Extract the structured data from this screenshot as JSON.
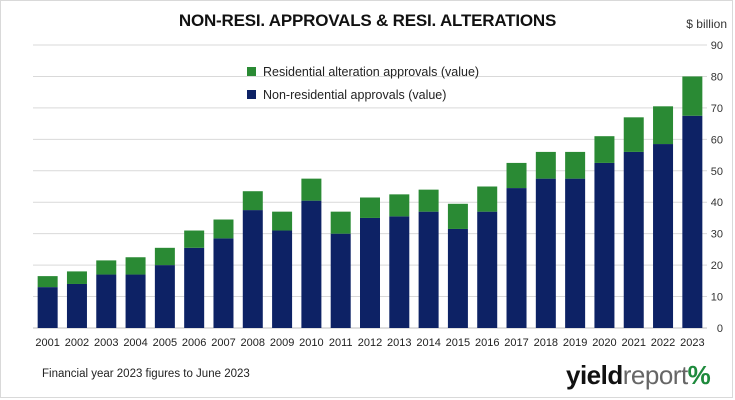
{
  "chart_data": {
    "type": "bar",
    "stacked": true,
    "title": "NON-RESI. APPROVALS & RESI. ALTERATIONS",
    "unit_label": "$ billion",
    "categories": [
      "2001",
      "2002",
      "2003",
      "2004",
      "2005",
      "2006",
      "2007",
      "2008",
      "2009",
      "2010",
      "2011",
      "2012",
      "2013",
      "2014",
      "2015",
      "2016",
      "2017",
      "2018",
      "2019",
      "2020",
      "2021",
      "2022",
      "2023"
    ],
    "series": [
      {
        "name": "Non-residential approvals (value)",
        "color": "#0d2265",
        "values": [
          13,
          14,
          17,
          17,
          20,
          25.5,
          28.5,
          37.5,
          31,
          40.5,
          30,
          35,
          35.5,
          37,
          31.5,
          37,
          44.5,
          47.5,
          47.5,
          52.5,
          56,
          58.5,
          67.5
        ]
      },
      {
        "name": "Residential alteration approvals (value)",
        "color": "#2a8a34",
        "values": [
          3.5,
          4,
          4.5,
          5.5,
          5.5,
          5.5,
          6,
          6,
          6,
          7,
          7,
          6.5,
          7,
          7,
          8,
          8,
          8,
          8.5,
          8.5,
          8.5,
          11,
          12,
          12.5
        ]
      }
    ],
    "ylim": [
      0,
      90
    ],
    "yticks": [
      0,
      10,
      20,
      30,
      40,
      50,
      60,
      70,
      80,
      90
    ],
    "grid": true,
    "legend_placement": "top-center"
  },
  "footnote": "Financial year 2023 figures to June 2023",
  "logo": {
    "part1": "yield",
    "part2": "report",
    "part3": "%"
  }
}
